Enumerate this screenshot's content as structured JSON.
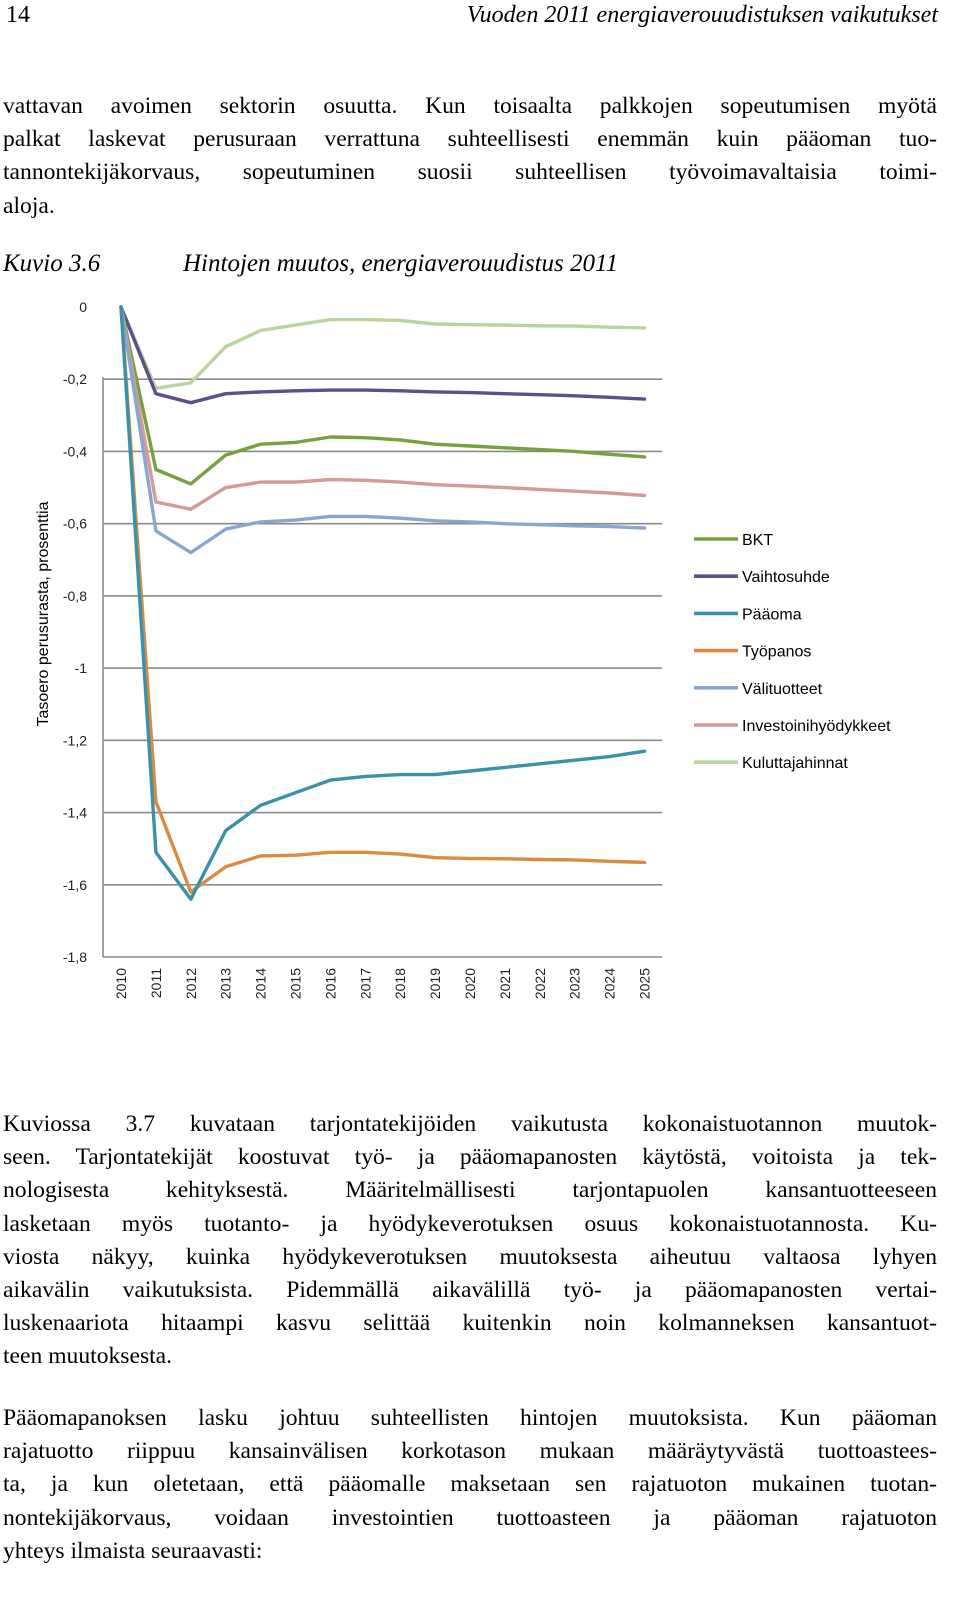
{
  "header": {
    "page_number": "14",
    "running_title": "Vuoden 2011 energiaverouudistuksen vaikutukset"
  },
  "paragraph_1": [
    "vattavan avoimen sektorin osuutta. Kun toisaalta palkkojen sopeutumisen myötä",
    "palkat laskevat perusuraan verrattuna suhteellisesti enemmän kuin pääoman tuo-",
    "tannontekijäkorvaus, sopeutuminen suosii suhteellisen työvoimavaltaisia toimi-",
    "aloja."
  ],
  "figure": {
    "label": "Kuvio 3.6",
    "title": "Hintojen muutos, energiaverouudistus 2011"
  },
  "chart_data": {
    "type": "line",
    "ylabel": "Tasoero perusurasta, prosenttia",
    "xlabel": "",
    "ylim": [
      -1.8,
      0
    ],
    "y_ticks": [
      "0",
      "-0,2",
      "-0,4",
      "-0,6",
      "-0,8",
      "-1",
      "-1,2",
      "-1,4",
      "-1,6",
      "-1,8"
    ],
    "y_tick_values": [
      0,
      -0.2,
      -0.4,
      -0.6,
      -0.8,
      -1.0,
      -1.2,
      -1.4,
      -1.6,
      -1.8
    ],
    "grid": "horizontal",
    "legend_position": "right",
    "x": [
      "2010",
      "2011",
      "2012",
      "2013",
      "2014",
      "2015",
      "2016",
      "2017",
      "2018",
      "2019",
      "2020",
      "2021",
      "2022",
      "2023",
      "2024",
      "2025"
    ],
    "series": [
      {
        "name": "BKT",
        "color": "#77a03e",
        "values": [
          0,
          -0.45,
          -0.49,
          -0.41,
          -0.38,
          -0.375,
          -0.36,
          -0.362,
          -0.368,
          -0.38,
          -0.385,
          -0.39,
          -0.395,
          -0.4,
          -0.408,
          -0.415
        ]
      },
      {
        "name": "Vaihtosuhde",
        "color": "#5e4e8c",
        "values": [
          0,
          -0.24,
          -0.265,
          -0.24,
          -0.235,
          -0.232,
          -0.23,
          -0.23,
          -0.232,
          -0.235,
          -0.237,
          -0.24,
          -0.243,
          -0.246,
          -0.25,
          -0.255
        ]
      },
      {
        "name": "Pääoma",
        "color": "#3a91a8",
        "values": [
          0,
          -1.51,
          -1.64,
          -1.45,
          -1.38,
          -1.345,
          -1.31,
          -1.3,
          -1.295,
          -1.295,
          -1.285,
          -1.275,
          -1.265,
          -1.255,
          -1.245,
          -1.23
        ]
      },
      {
        "name": "Työpanos",
        "color": "#d98b43",
        "values": [
          0,
          -1.37,
          -1.62,
          -1.55,
          -1.52,
          -1.518,
          -1.51,
          -1.51,
          -1.515,
          -1.525,
          -1.527,
          -1.528,
          -1.53,
          -1.531,
          -1.535,
          -1.538
        ]
      },
      {
        "name": "Välituotteet",
        "color": "#8aa6d0",
        "values": [
          0,
          -0.62,
          -0.68,
          -0.615,
          -0.595,
          -0.59,
          -0.58,
          -0.58,
          -0.585,
          -0.592,
          -0.595,
          -0.6,
          -0.603,
          -0.606,
          -0.608,
          -0.612
        ]
      },
      {
        "name": "Investoinihyödykkeet",
        "color": "#d39a98",
        "values": [
          0,
          -0.54,
          -0.56,
          -0.5,
          -0.485,
          -0.485,
          -0.478,
          -0.48,
          -0.485,
          -0.492,
          -0.496,
          -0.5,
          -0.505,
          -0.51,
          -0.515,
          -0.522
        ]
      },
      {
        "name": "Kuluttajahinnat",
        "color": "#b9d49d",
        "values": [
          0,
          -0.225,
          -0.21,
          -0.11,
          -0.065,
          -0.05,
          -0.035,
          -0.035,
          -0.037,
          -0.047,
          -0.049,
          -0.05,
          -0.052,
          -0.053,
          -0.056,
          -0.058
        ]
      }
    ]
  },
  "paragraph_2": [
    "Kuviossa 3.7 kuvataan tarjontatekijöiden vaikutusta kokonaistuotannon muutok-",
    "seen. Tarjontatekijät koostuvat työ- ja pääomapanosten käytöstä, voitoista ja tek-",
    "nologisesta kehityksestä. Määritelmällisesti tarjontapuolen kansantuotteeseen",
    "lasketaan myös tuotanto- ja hyödykeverotuksen osuus kokonaistuotannosta. Ku-",
    "viosta näkyy, kuinka hyödykeverotuksen muutoksesta aiheutuu valtaosa lyhyen",
    "aikavälin vaikutuksista. Pidemmällä aikavälillä työ- ja pääomapanosten vertai-",
    "luskenaariota hitaampi kasvu selittää kuitenkin noin kolmanneksen kansantuot-",
    "teen muutoksesta."
  ],
  "paragraph_3": [
    "Pääomapanoksen lasku johtuu suhteellisten hintojen muutoksista. Kun pääoman",
    "rajatuotto riippuu kansainvälisen korkotason mukaan määräytyvästä tuottoastees-",
    "ta, ja kun oletetaan, että pääomalle maksetaan sen rajatuoton mukainen tuotan-",
    "nontekijäkorvaus, voidaan investointien tuottoasteen ja pääoman rajatuoton",
    "yhteys ilmaista seuraavasti:"
  ]
}
